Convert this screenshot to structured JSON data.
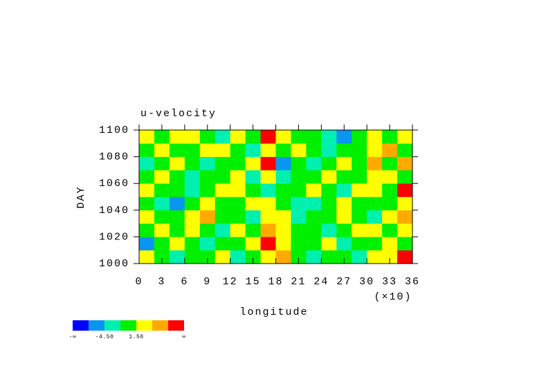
{
  "chart_data": {
    "type": "heatmap",
    "title": "u-velocity",
    "x_label": "longitude",
    "x_multiplier": "(×10)",
    "y_label": "DAY",
    "xlim": [
      0,
      36
    ],
    "xticks": [
      0,
      3,
      6,
      9,
      12,
      15,
      18,
      21,
      24,
      27,
      30,
      33,
      36
    ],
    "ylim": [
      1000,
      1100
    ],
    "yticks": [
      1000,
      1020,
      1040,
      1060,
      1080,
      1100
    ],
    "xbins": [
      0,
      2,
      4,
      6,
      8,
      10,
      12,
      14,
      16,
      18,
      20,
      22,
      24,
      26,
      28,
      30,
      32,
      34,
      36
    ],
    "ybins": [
      1000,
      1010,
      1020,
      1030,
      1040,
      1050,
      1060,
      1070,
      1080,
      1090,
      1100
    ],
    "z": [
      [
        2,
        0,
        -3,
        0,
        1,
        3,
        -2,
        0,
        3,
        5,
        0,
        -2,
        1,
        0,
        -3,
        2,
        4,
        8
      ],
      [
        -5,
        0,
        2,
        0,
        -2,
        1,
        0,
        3,
        8,
        4,
        -1,
        0,
        2,
        -3,
        0,
        1,
        3,
        0
      ],
      [
        0,
        3,
        -1,
        4,
        0,
        -2,
        2,
        1,
        5,
        3,
        0,
        1,
        -2,
        0,
        2,
        4,
        0,
        3
      ],
      [
        2,
        -1,
        0,
        3,
        5,
        1,
        0,
        -2,
        4,
        2,
        -3,
        0,
        1,
        3,
        0,
        -2,
        2,
        6
      ],
      [
        0,
        -3,
        -5,
        0,
        2,
        0,
        -1,
        3,
        2,
        0,
        -2,
        -4,
        0,
        2,
        1,
        0,
        -1,
        3
      ],
      [
        3,
        0,
        1,
        -2,
        0,
        3,
        4,
        0,
        -3,
        -1,
        0,
        2,
        0,
        -2,
        3,
        4,
        0,
        9
      ],
      [
        0,
        2,
        0,
        -2,
        1,
        0,
        2,
        -3,
        3,
        -2,
        0,
        1,
        3,
        0,
        -1,
        2,
        3,
        0
      ],
      [
        -2,
        0,
        3,
        0,
        -3,
        0,
        1,
        2,
        9,
        -6,
        0,
        -2,
        0,
        2,
        1,
        5,
        -1,
        7
      ],
      [
        1,
        3,
        0,
        -1,
        2,
        4,
        0,
        -2,
        3,
        0,
        2,
        0,
        -3,
        1,
        0,
        2,
        6,
        0
      ],
      [
        4,
        0,
        2,
        3,
        0,
        -2,
        3,
        0,
        8,
        2,
        0,
        1,
        -2,
        -5,
        0,
        3,
        0,
        2
      ]
    ],
    "levels": [
      -7.5,
      -4.5,
      -1.5,
      1.5,
      4.5,
      7.5
    ],
    "colors": [
      "#0000ff",
      "#0a96f0",
      "#00f0b0",
      "#00f000",
      "#ffff00",
      "#ffaa00",
      "#ff0000"
    ],
    "colorbar_ticks": [
      {
        "value": null,
        "label": "-∞"
      },
      {
        "value": -4.5,
        "label": "-4.50"
      },
      {
        "value": 1.5,
        "label": "1.50"
      },
      {
        "value": null,
        "label": "∞"
      }
    ]
  }
}
